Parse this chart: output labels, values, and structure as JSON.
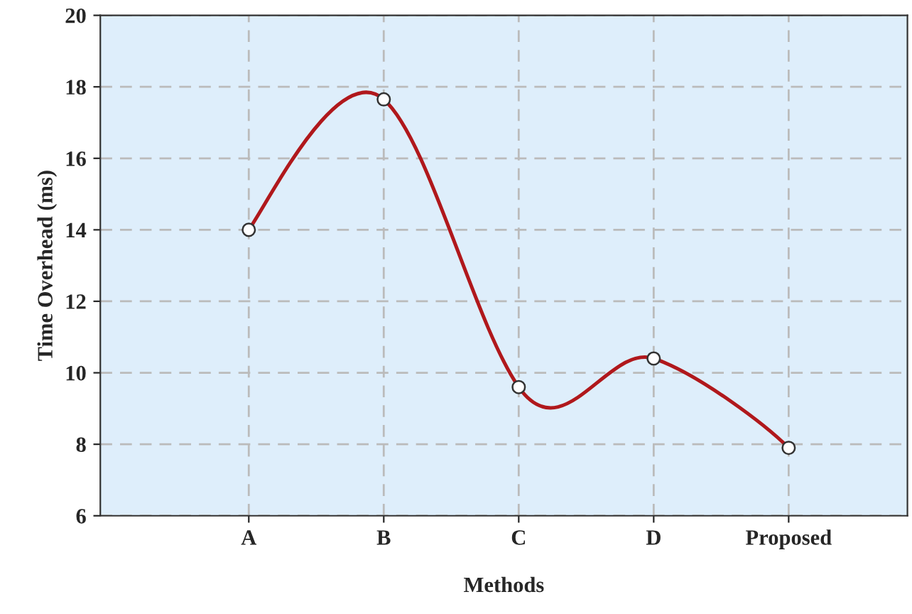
{
  "chart_data": {
    "type": "line",
    "xlabel": "Methods",
    "ylabel": "Time Overhead (ms)",
    "categories": [
      "A",
      "B",
      "C",
      "D",
      "Proposed"
    ],
    "series": [
      {
        "color": "#b0181c",
        "values": [
          14.0,
          17.65,
          9.6,
          10.4,
          7.9
        ]
      }
    ],
    "ylim": [
      6,
      20
    ],
    "yticks": [
      6,
      8,
      10,
      12,
      14,
      16,
      18,
      20
    ],
    "grid": true,
    "marker": "circle",
    "line_style": "solid"
  }
}
